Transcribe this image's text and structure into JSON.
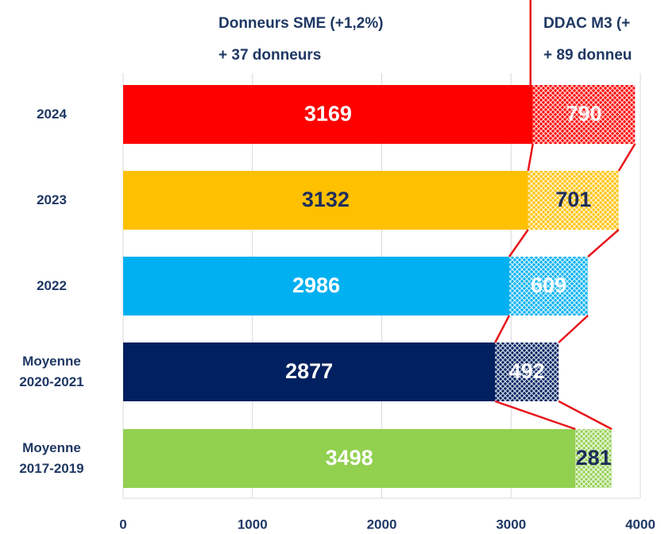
{
  "chart_data": {
    "type": "stacked-bar-horizontal",
    "annotations": [
      "Donneurs SME (+1,2%)",
      "+ 37 donneurs",
      "DDAC M3 (+",
      "+ 89 donneu"
    ],
    "categories": [
      "2024",
      "2023",
      "2022",
      "Moyenne\n2020-2021",
      "Moyenne\n2017-2019"
    ],
    "colors": [
      "#ff0000",
      "#ffc000",
      "#00b0f0",
      "#002060",
      "#92d050"
    ],
    "series": [
      {
        "values": [
          3169,
          3132,
          2986,
          2877,
          3498
        ],
        "label_colors": [
          "#ffffff",
          "#1f2d5a",
          "#ffffff",
          "#ffffff",
          "#ffffff"
        ],
        "pattern": false
      },
      {
        "values": [
          790,
          701,
          609,
          492,
          281
        ],
        "label_colors": [
          "#ffffff",
          "#1f2d5a",
          "#ffffff",
          "#ffffff",
          "#1f2d5a"
        ],
        "pattern": true
      }
    ],
    "connector_color": "#e8141b",
    "xlim": [
      0,
      4000
    ],
    "xticks": [
      0,
      1000,
      2000,
      3000,
      4000
    ],
    "grid": true
  }
}
